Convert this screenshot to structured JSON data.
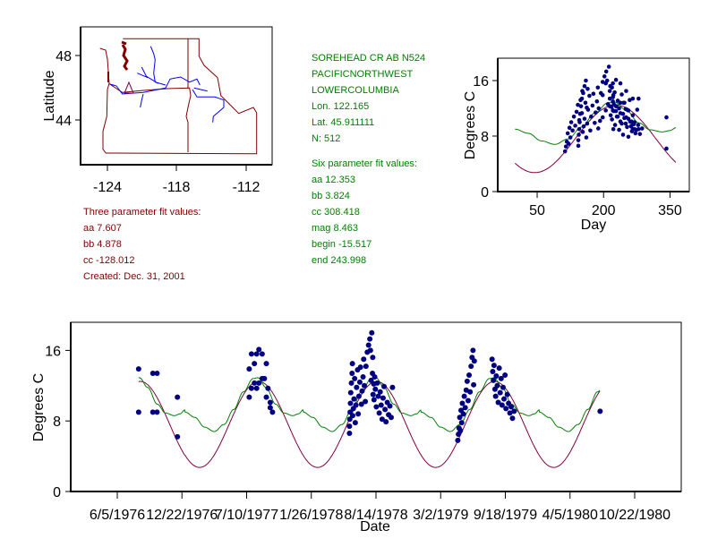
{
  "station_info": {
    "name": "SOREHEAD CR AB N524",
    "region": "PACIFICNORTHWEST",
    "subregion": "LOWERCOLUMBIA",
    "lon": "Lon. 122.165",
    "lat": "Lat. 45.911111",
    "n": "N: 512"
  },
  "six_param": {
    "title": "Six parameter fit values:",
    "aa": "aa 12.353",
    "bb": "bb 3.824",
    "cc": "cc 308.418",
    "mag": "mag 8.463",
    "begin": "begin -15.517",
    "end": "end 243.998"
  },
  "three_param": {
    "title": "Three parameter fit values:",
    "aa": "aa 7.607",
    "bb": "bb 4.878",
    "cc": "cc -128.012",
    "created": "Created:   Dec. 31, 2001"
  },
  "colors": {
    "three_param_curve": "#800040",
    "six_param_curve": "#008000",
    "observations": "#000080",
    "map_borders": "#800000",
    "map_rivers": "#0000ff",
    "station_marker": "#800040"
  },
  "chart_data": [
    {
      "id": "map",
      "type": "map",
      "ylabel": "Latitude",
      "xticks": [
        "-124",
        "-118",
        "-112"
      ],
      "yticks": [
        "48",
        "44"
      ],
      "station": {
        "lon": -122.165,
        "lat": 45.911111,
        "marker": "triangle"
      }
    },
    {
      "id": "seasonal",
      "type": "scatter",
      "xlabel": "Day",
      "ylabel": "Degrees C",
      "xticks": [
        "50",
        "200",
        "350"
      ],
      "yticks": [
        "0",
        "8",
        "16"
      ],
      "xlim": [
        -50,
        390
      ],
      "ylim": [
        0,
        19.2
      ],
      "grid": false,
      "x_source": "day of year of observations",
      "six_param_fit_curve": [
        [
          0,
          9.0
        ],
        [
          30,
          8.4
        ],
        [
          60,
          7.3
        ],
        [
          90,
          6.8
        ],
        [
          120,
          7.6
        ],
        [
          150,
          9.3
        ],
        [
          180,
          11.3
        ],
        [
          210,
          12.8
        ],
        [
          225,
          12.9
        ],
        [
          250,
          11.8
        ],
        [
          280,
          9.9
        ],
        [
          305,
          8.9
        ],
        [
          333,
          8.6
        ],
        [
          350,
          8.8
        ],
        [
          365,
          9.25
        ]
      ]
    },
    {
      "id": "timeseries",
      "type": "scatter",
      "xlabel": "Date",
      "ylabel": "Degrees C",
      "xticks": [
        "6/5/1976",
        "12/22/1976",
        "7/10/1977",
        "1/26/1978",
        "8/14/1978",
        "3/2/1979",
        "9/18/1979",
        "4/5/1980",
        "10/22/1980"
      ],
      "xtick_dates": [
        "1976-06-05",
        "1976-12-22",
        "1977-07-10",
        "1978-01-26",
        "1978-08-14",
        "1979-03-02",
        "1979-09-18",
        "1980-04-05",
        "1980-10-22"
      ],
      "yticks": [
        "0",
        "8",
        "16"
      ],
      "ylim": [
        0,
        19.2
      ],
      "xlim": [
        "1976-01-02",
        "1981-02-07"
      ],
      "grid": false,
      "curve_range": [
        "1976-08-10",
        "1980-07-07"
      ],
      "observations": [
        [
          "1976-08-10",
          13.9
        ],
        [
          "1976-08-10",
          9.0
        ],
        [
          "1976-09-23",
          13.4
        ],
        [
          "1976-10-06",
          13.4
        ],
        [
          "1976-09-23",
          9.0
        ],
        [
          "1976-10-06",
          9.0
        ],
        [
          "1976-12-08",
          10.7
        ],
        [
          "1976-12-08",
          6.2
        ],
        [
          "1977-07-18",
          13.9
        ],
        [
          "1977-07-25",
          15.6
        ],
        [
          "1977-08-10",
          15.6
        ],
        [
          "1977-08-17",
          16.1
        ],
        [
          "1977-08-27",
          15.6
        ],
        [
          "1977-08-03",
          14.5
        ],
        [
          "1977-09-09",
          14.5
        ],
        [
          "1977-07-18",
          10.7
        ],
        [
          "1977-07-25",
          11.7
        ],
        [
          "1977-08-10",
          11.7
        ],
        [
          "1977-08-03",
          12.3
        ],
        [
          "1977-08-17",
          12.3
        ],
        [
          "1977-08-27",
          12.8
        ],
        [
          "1977-09-03",
          12.8
        ],
        [
          "1977-09-14",
          11.7
        ],
        [
          "1977-09-09",
          10.7
        ],
        [
          "1977-09-21",
          10.1
        ],
        [
          "1977-09-21",
          9.5
        ],
        [
          "1977-09-28",
          9.0
        ],
        [
          "1978-05-24",
          6.6
        ],
        [
          "1978-05-24",
          7.4
        ],
        [
          "1978-05-25",
          8.2
        ],
        [
          "1978-05-26",
          9.0
        ],
        [
          "1978-05-27",
          10.0
        ],
        [
          "1978-05-28",
          11.2
        ],
        [
          "1978-05-30",
          12.3
        ],
        [
          "1978-06-01",
          13.4
        ],
        [
          "1978-06-02",
          14.5
        ],
        [
          "1978-06-03",
          8.6
        ],
        [
          "1978-06-05",
          9.4
        ],
        [
          "1978-06-07",
          10.5
        ],
        [
          "1978-06-09",
          12.8
        ],
        [
          "1978-06-11",
          7.8
        ],
        [
          "1978-06-13",
          9.8
        ],
        [
          "1978-06-15",
          11.8
        ],
        [
          "1978-06-18",
          13.8
        ],
        [
          "1978-06-20",
          8.8
        ],
        [
          "1978-06-22",
          10.8
        ],
        [
          "1978-06-25",
          12.4
        ],
        [
          "1978-06-27",
          14.1
        ],
        [
          "1978-06-30",
          9.9
        ],
        [
          "1978-07-02",
          11.4
        ],
        [
          "1978-07-05",
          13.0
        ],
        [
          "1978-07-07",
          15.0
        ],
        [
          "1978-07-09",
          12.0
        ],
        [
          "1978-07-12",
          10.2
        ],
        [
          "1978-07-14",
          14.2
        ],
        [
          "1978-07-18",
          15.8
        ],
        [
          "1978-07-22",
          16.6
        ],
        [
          "1978-07-26",
          17.3
        ],
        [
          "1978-07-28",
          16.0
        ],
        [
          "1978-08-01",
          18.0
        ],
        [
          "1978-07-30",
          12.6
        ],
        [
          "1978-08-03",
          13.4
        ],
        [
          "1978-08-05",
          11.0
        ],
        [
          "1978-08-04",
          15.2
        ],
        [
          "1978-08-07",
          12.2
        ],
        [
          "1978-08-08",
          10.4
        ],
        [
          "1978-08-10",
          13.0
        ],
        [
          "1978-08-12",
          11.6
        ],
        [
          "1978-08-15",
          9.6
        ],
        [
          "1978-08-18",
          12.3
        ],
        [
          "1978-08-21",
          10.8
        ],
        [
          "1978-08-24",
          8.9
        ],
        [
          "1978-08-27",
          11.3
        ],
        [
          "1978-08-30",
          9.8
        ],
        [
          "1978-09-02",
          8.2
        ],
        [
          "1978-09-05",
          10.6
        ],
        [
          "1978-09-08",
          11.9
        ],
        [
          "1978-09-11",
          9.3
        ],
        [
          "1978-09-14",
          7.9
        ],
        [
          "1978-09-18",
          10.1
        ],
        [
          "1978-09-22",
          8.7
        ],
        [
          "1978-09-26",
          9.7
        ],
        [
          "1978-09-30",
          8.4
        ],
        [
          "1978-10-04",
          11.8
        ],
        [
          "1979-04-24",
          5.8
        ],
        [
          "1979-04-26",
          6.5
        ],
        [
          "1979-04-28",
          7.2
        ],
        [
          "1979-04-30",
          8.4
        ],
        [
          "1979-05-02",
          6.9
        ],
        [
          "1979-05-04",
          9.2
        ],
        [
          "1979-05-06",
          7.8
        ],
        [
          "1979-05-08",
          10.0
        ],
        [
          "1979-05-11",
          8.8
        ],
        [
          "1979-05-14",
          10.8
        ],
        [
          "1979-05-17",
          9.5
        ],
        [
          "1979-05-20",
          11.5
        ],
        [
          "1979-05-23",
          12.5
        ],
        [
          "1979-05-26",
          10.3
        ],
        [
          "1979-05-29",
          13.2
        ],
        [
          "1979-06-01",
          11.3
        ],
        [
          "1979-06-04",
          14.2
        ],
        [
          "1979-06-07",
          15.2
        ],
        [
          "1979-06-10",
          16.0
        ],
        [
          "1979-06-12",
          12.1
        ],
        [
          "1979-06-14",
          14.8
        ],
        [
          "1979-08-08",
          15.0
        ],
        [
          "1979-08-10",
          13.6
        ],
        [
          "1979-08-12",
          12.6
        ],
        [
          "1979-08-14",
          14.3
        ],
        [
          "1979-08-17",
          11.6
        ],
        [
          "1979-08-19",
          10.8
        ],
        [
          "1979-08-21",
          13.1
        ],
        [
          "1979-08-24",
          12.0
        ],
        [
          "1979-08-27",
          10.1
        ],
        [
          "1979-08-30",
          14.0
        ],
        [
          "1979-09-02",
          11.2
        ],
        [
          "1979-09-05",
          12.8
        ],
        [
          "1979-09-08",
          9.8
        ],
        [
          "1979-09-11",
          11.8
        ],
        [
          "1979-09-14",
          10.5
        ],
        [
          "1979-09-17",
          13.2
        ],
        [
          "1979-09-20",
          9.4
        ],
        [
          "1979-09-24",
          11.0
        ],
        [
          "1979-09-28",
          10.0
        ],
        [
          "1979-10-02",
          8.9
        ],
        [
          "1979-10-06",
          9.6
        ],
        [
          "1979-10-10",
          8.3
        ],
        [
          "1979-10-15",
          9.1
        ],
        [
          "1980-07-07",
          9.1
        ]
      ]
    }
  ]
}
